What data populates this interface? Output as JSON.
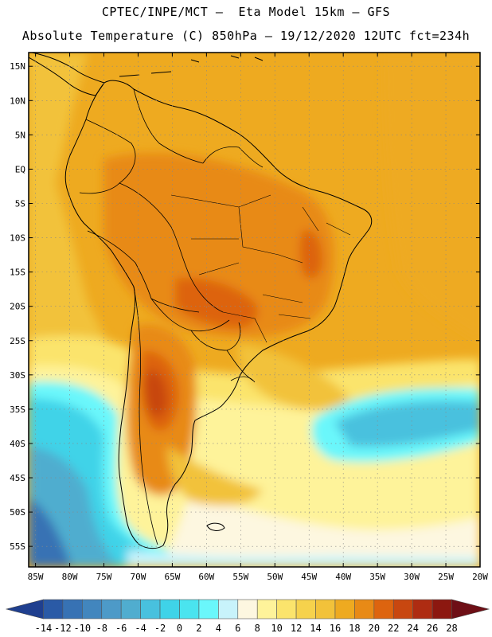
{
  "header": {
    "line1": "CPTEC/INPE/MCT –  Eta Model 15km – GFS",
    "line2": "Absolute Temperature (C) 850hPa – 19/12/2020 12UTC fct=234h"
  },
  "map": {
    "region": "South America",
    "lat_range": [
      -58,
      17
    ],
    "lon_range": [
      -86,
      -20
    ],
    "lat_ticks": [
      "15N",
      "10N",
      "5N",
      "EQ",
      "5S",
      "10S",
      "15S",
      "20S",
      "25S",
      "30S",
      "35S",
      "40S",
      "45S",
      "50S",
      "55S"
    ],
    "lat_values": [
      15,
      10,
      5,
      0,
      -5,
      -10,
      -15,
      -20,
      -25,
      -30,
      -35,
      -40,
      -45,
      -50,
      -55
    ],
    "lon_ticks": [
      "85W",
      "80W",
      "75W",
      "70W",
      "65W",
      "60W",
      "55W",
      "50W",
      "45W",
      "40W",
      "35W",
      "30W",
      "25W",
      "20W"
    ],
    "lon_values": [
      -85,
      -80,
      -75,
      -70,
      -65,
      -60,
      -55,
      -50,
      -45,
      -40,
      -35,
      -30,
      -25,
      -20
    ]
  },
  "colorbar": {
    "labels": [
      "-14",
      "-12",
      "-10",
      "-8",
      "-6",
      "-4",
      "-2",
      "0",
      "2",
      "4",
      "6",
      "8",
      "10",
      "12",
      "14",
      "16",
      "18",
      "20",
      "22",
      "24",
      "26",
      "28"
    ],
    "colors": [
      "#1f3f8f",
      "#2a5aa6",
      "#3772b4",
      "#4286be",
      "#4d9ac8",
      "#50adcf",
      "#48c1de",
      "#3fd3e8",
      "#4ae4ef",
      "#6af7fb",
      "#c8f3fb",
      "#fdf7e0",
      "#fef39a",
      "#fbe46c",
      "#f6d24c",
      "#f2c23a",
      "#eeaa20",
      "#e88a16",
      "#dd640f",
      "#c84710",
      "#ae2c12",
      "#8c1810",
      "#6e0f16"
    ]
  }
}
